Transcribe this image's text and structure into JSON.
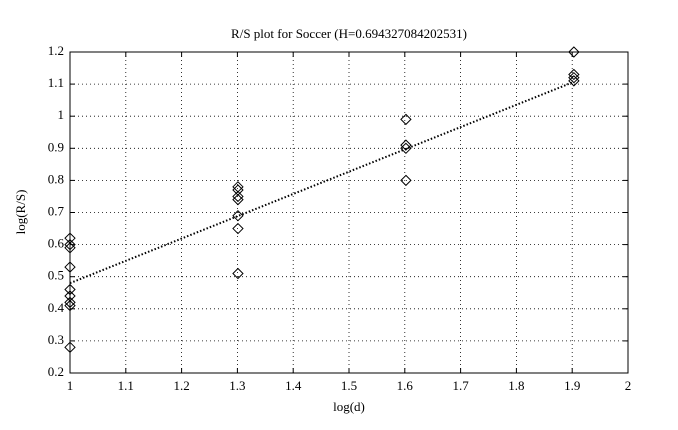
{
  "chart_data": {
    "type": "scatter",
    "title": "R/S plot for Soccer (H=0.694327084202531)",
    "x_label": "log(d)",
    "y_label": "log(R/S)",
    "xlim": [
      1,
      2
    ],
    "ylim": [
      0.2,
      1.2
    ],
    "xticks": [
      1,
      1.1,
      1.2,
      1.3,
      1.4,
      1.5,
      1.6,
      1.7,
      1.8,
      1.9,
      2
    ],
    "yticks": [
      0.2,
      0.3,
      0.4,
      0.5,
      0.6,
      0.7,
      0.8,
      0.9,
      1,
      1.1,
      1.2
    ],
    "grid": true,
    "series": [
      {
        "mode": "markers",
        "marker": "diamond",
        "color": "#000000",
        "x": [
          1,
          1,
          1,
          1,
          1,
          1,
          1,
          1,
          1,
          1.301,
          1.301,
          1.301,
          1.301,
          1.301,
          1.301,
          1.301,
          1.602,
          1.602,
          1.602,
          1.602,
          1.903,
          1.903,
          1.903,
          1.903
        ],
        "values": [
          0.62,
          0.6,
          0.59,
          0.53,
          0.46,
          0.44,
          0.42,
          0.41,
          0.28,
          0.78,
          0.77,
          0.75,
          0.74,
          0.69,
          0.65,
          0.51,
          0.99,
          0.91,
          0.9,
          0.8,
          1.2,
          1.13,
          1.12,
          1.11
        ]
      },
      {
        "mode": "line",
        "dash": "dotted",
        "color": "#000000",
        "x": [
          1,
          1.903
        ],
        "values": [
          0.48,
          1.107
        ]
      }
    ]
  }
}
